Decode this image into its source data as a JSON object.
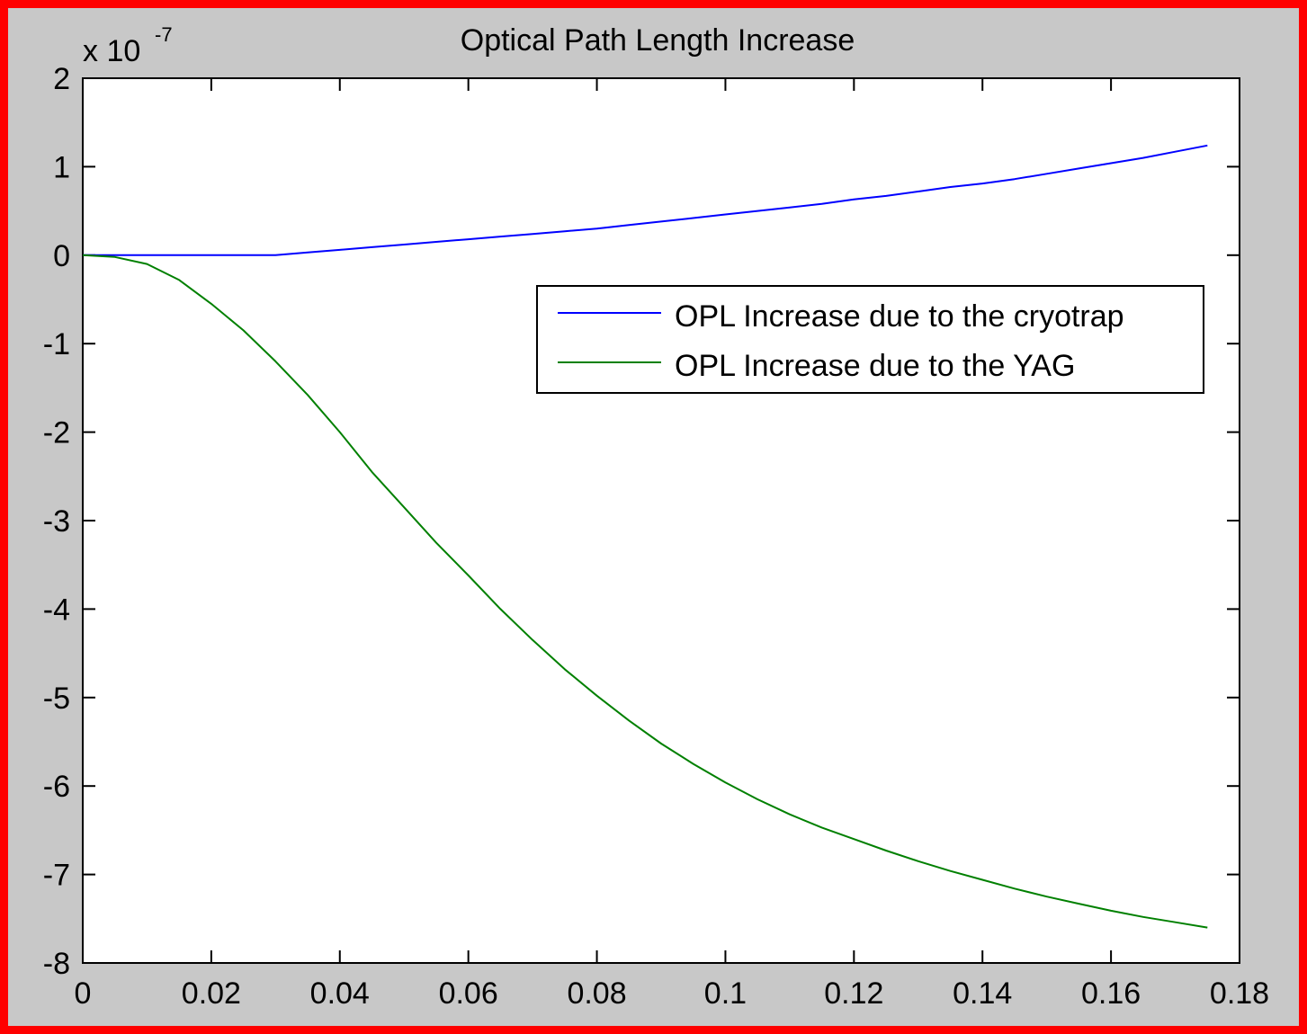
{
  "chart_data": {
    "type": "line",
    "title": "Optical Path Length Increase",
    "xlabel": "",
    "ylabel": "",
    "xlim": [
      0,
      0.18
    ],
    "ylim": [
      -8,
      2
    ],
    "y_multiplier": {
      "base": "x 10",
      "exponent": "-7"
    },
    "x_ticks": [
      0,
      0.02,
      0.04,
      0.06,
      0.08,
      0.1,
      0.12,
      0.14,
      0.16,
      0.18
    ],
    "x_tick_labels": [
      "0",
      "0.02",
      "0.04",
      "0.06",
      "0.08",
      "0.1",
      "0.12",
      "0.14",
      "0.16",
      "0.18"
    ],
    "y_ticks": [
      2,
      1,
      0,
      -1,
      -2,
      -3,
      -4,
      -5,
      -6,
      -7,
      -8
    ],
    "y_tick_labels": [
      "2",
      "1",
      "0",
      "-1",
      "-2",
      "-3",
      "-4",
      "-5",
      "-6",
      "-7",
      "-8"
    ],
    "grid": false,
    "legend": "top-right",
    "series": [
      {
        "name": "OPL Increase due to the cryotrap",
        "color": "#0000ff",
        "x": [
          0,
          0.005,
          0.01,
          0.015,
          0.02,
          0.025,
          0.03,
          0.035,
          0.04,
          0.045,
          0.05,
          0.055,
          0.06,
          0.065,
          0.07,
          0.075,
          0.08,
          0.085,
          0.09,
          0.095,
          0.1,
          0.105,
          0.11,
          0.115,
          0.12,
          0.125,
          0.13,
          0.135,
          0.14,
          0.145,
          0.15,
          0.155,
          0.16,
          0.165,
          0.17,
          0.175
        ],
        "y": [
          0,
          0,
          0,
          0,
          0,
          0,
          0,
          0.03,
          0.06,
          0.09,
          0.12,
          0.15,
          0.18,
          0.21,
          0.24,
          0.27,
          0.3,
          0.34,
          0.38,
          0.42,
          0.46,
          0.5,
          0.54,
          0.58,
          0.63,
          0.67,
          0.72,
          0.77,
          0.81,
          0.86,
          0.92,
          0.98,
          1.04,
          1.1,
          1.17,
          1.24
        ]
      },
      {
        "name": "OPL Increase due to the YAG",
        "color": "#008000",
        "x": [
          0,
          0.005,
          0.01,
          0.015,
          0.02,
          0.025,
          0.03,
          0.035,
          0.04,
          0.045,
          0.05,
          0.055,
          0.06,
          0.065,
          0.07,
          0.075,
          0.08,
          0.085,
          0.09,
          0.095,
          0.1,
          0.105,
          0.11,
          0.115,
          0.12,
          0.125,
          0.13,
          0.135,
          0.14,
          0.145,
          0.15,
          0.155,
          0.16,
          0.165,
          0.17,
          0.175
        ],
        "y": [
          0,
          -0.02,
          -0.1,
          -0.28,
          -0.55,
          -0.85,
          -1.2,
          -1.58,
          -2.0,
          -2.45,
          -2.85,
          -3.25,
          -3.62,
          -4.0,
          -4.35,
          -4.68,
          -4.98,
          -5.26,
          -5.52,
          -5.75,
          -5.96,
          -6.15,
          -6.32,
          -6.47,
          -6.6,
          -6.73,
          -6.85,
          -6.96,
          -7.06,
          -7.16,
          -7.25,
          -7.33,
          -7.41,
          -7.48,
          -7.54,
          -7.6
        ]
      }
    ]
  }
}
